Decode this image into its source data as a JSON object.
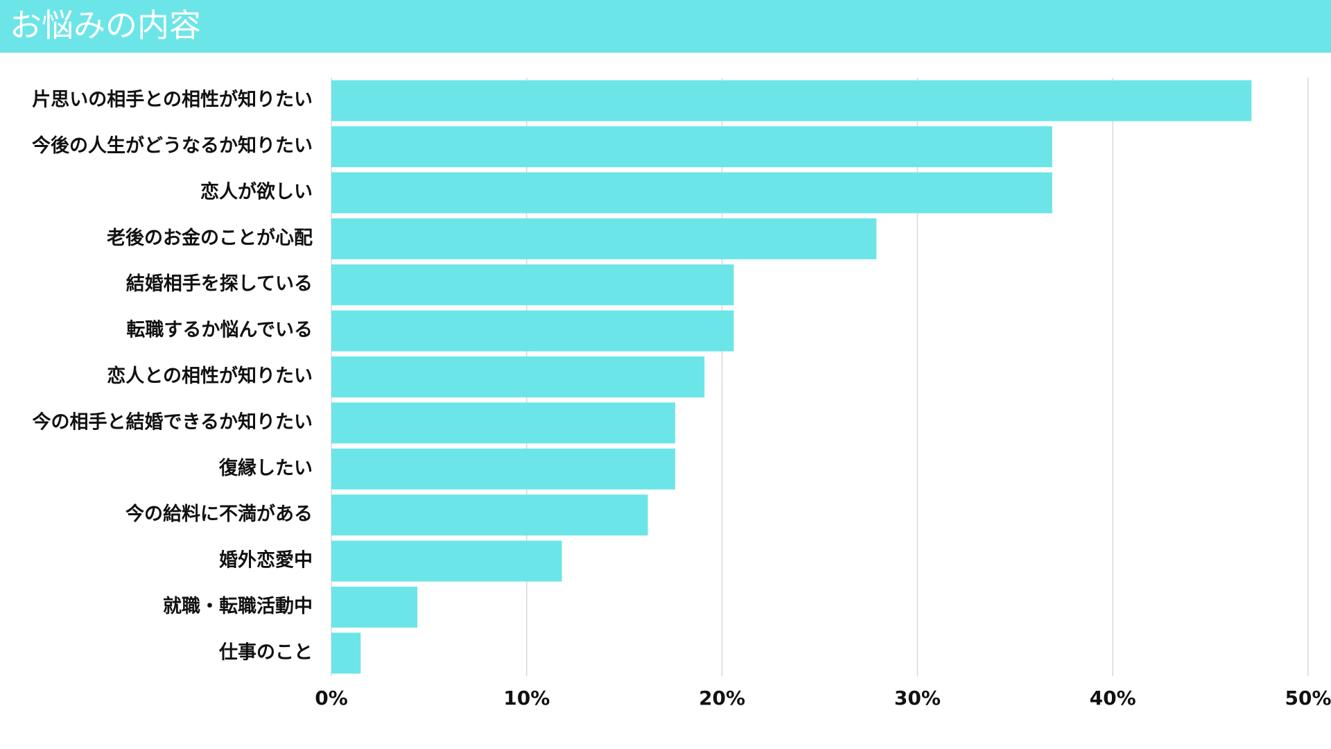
{
  "chart_data": {
    "type": "hbar",
    "title": "お悩みの内容",
    "categories": [
      "片思いの相手との相性が知りたい",
      "今後の人生がどうなるか知りたい",
      "恋人が欲しい",
      "老後のお金のことが心配",
      "結婚相手を探している",
      "転職するか悩んでいる",
      "恋人との相性が知りたい",
      "今の相手と結婚できるか知りたい",
      "復縁したい",
      "今の給料に不満がある",
      "婚外恋愛中",
      "就職・転職活動中",
      "仕事のこと"
    ],
    "values": [
      47.1,
      36.9,
      36.9,
      27.9,
      20.6,
      20.6,
      19.1,
      17.6,
      17.6,
      16.2,
      11.8,
      4.4,
      1.5
    ],
    "color": "#6ce5e8",
    "xlim": [
      0,
      50
    ],
    "xticks": [
      {
        "value": 0,
        "label": "0%"
      },
      {
        "value": 10,
        "label": "10%"
      },
      {
        "value": 20,
        "label": "20%"
      },
      {
        "value": 30,
        "label": "30%"
      },
      {
        "value": 40,
        "label": "40%"
      },
      {
        "value": 50,
        "label": "50%"
      }
    ],
    "grid": true
  }
}
